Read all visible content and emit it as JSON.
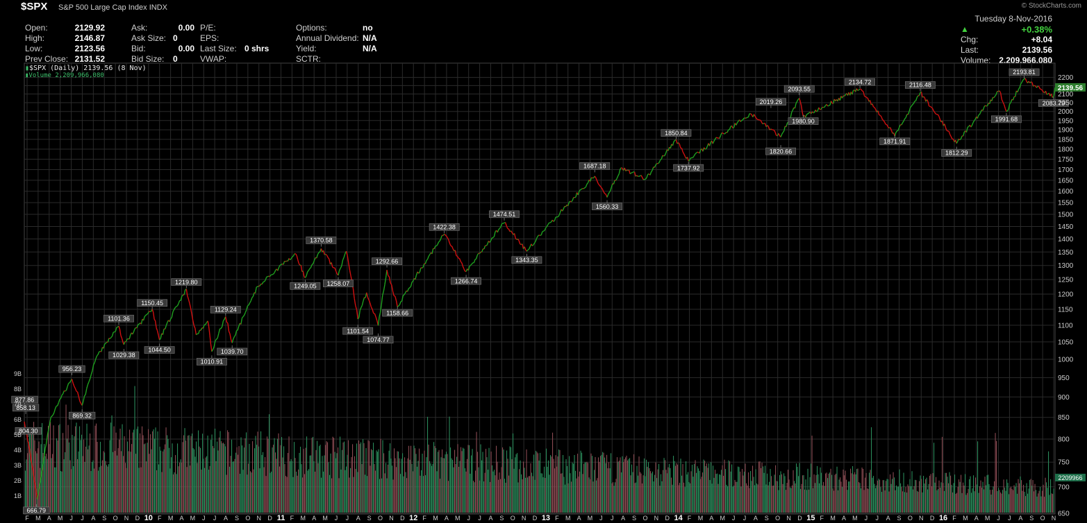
{
  "header": {
    "symbol": "$SPX",
    "name": "S&P 500 Large Cap Index",
    "exchange": "INDX",
    "brand": "© StockCharts.com"
  },
  "quote_left": [
    {
      "label": "Open:",
      "value": "2129.92"
    },
    {
      "label": "High:",
      "value": "2146.87"
    },
    {
      "label": "Low:",
      "value": "2123.56"
    },
    {
      "label": "Prev Close:",
      "value": "2131.52"
    }
  ],
  "quote_mid": [
    {
      "label": "Ask:",
      "value": "0.00"
    },
    {
      "label": "Ask Size:",
      "value": "0"
    },
    {
      "label": "Bid:",
      "value": "0.00"
    },
    {
      "label": "Bid Size:",
      "value": "0"
    }
  ],
  "quote_mid2": [
    {
      "label": "P/E:",
      "value": ""
    },
    {
      "label": "EPS:",
      "value": ""
    },
    {
      "label": "Last Size:",
      "value": "0 shrs"
    },
    {
      "label": "VWAP:",
      "value": ""
    }
  ],
  "quote_mid3": [
    {
      "label": "Options:",
      "value": "no"
    },
    {
      "label": "Annual Dividend:",
      "value": "N/A"
    },
    {
      "label": "Yield:",
      "value": "N/A"
    },
    {
      "label": "SCTR:",
      "value": ""
    }
  ],
  "quote_right": {
    "date": "Tuesday  8-Nov-2016",
    "pct_change": "+0.38%",
    "chg_label": "Chg:",
    "chg": "+8.04",
    "last_label": "Last:",
    "last": "2139.56",
    "volume_label": "Volume:",
    "volume": "2,209,966,080"
  },
  "legend": {
    "price": "$SPX (Daily) 2139.56 (8 Nov)",
    "volume": "Volume 2,209,966,080"
  },
  "colors": {
    "up": "#1fa01f",
    "down": "#d01010",
    "vol_up": "#2a8a5a",
    "vol_down": "#8a4a52",
    "grid": "#2b2b2b",
    "label_box": "#3a3a3a"
  },
  "chart_data": {
    "type": "line",
    "title": "$SPX (Daily) 2139.56 (8 Nov)",
    "y_scale": "log",
    "ylim": [
      650,
      2250
    ],
    "y_ticks": [
      650,
      700,
      750,
      800,
      850,
      900,
      950,
      1000,
      1050,
      1100,
      1150,
      1200,
      1250,
      1300,
      1350,
      1400,
      1450,
      1500,
      1550,
      1600,
      1650,
      1700,
      1750,
      1800,
      1850,
      1900,
      1950,
      2000,
      2050,
      2100,
      2150,
      2200
    ],
    "volume_ticks": [
      "1B",
      "2B",
      "3B",
      "4B",
      "5B",
      "6B",
      "7B",
      "8B",
      "9B"
    ],
    "x_ticks": [
      "F",
      "M",
      "A",
      "M",
      "J",
      "J",
      "A",
      "S",
      "O",
      "N",
      "D",
      "10",
      "F",
      "M",
      "A",
      "M",
      "J",
      "J",
      "A",
      "S",
      "O",
      "N",
      "D",
      "11",
      "F",
      "M",
      "A",
      "M",
      "J",
      "J",
      "A",
      "S",
      "O",
      "N",
      "D",
      "12",
      "F",
      "M",
      "A",
      "M",
      "J",
      "J",
      "A",
      "S",
      "O",
      "N",
      "D",
      "13",
      "F",
      "M",
      "A",
      "M",
      "J",
      "J",
      "A",
      "S",
      "O",
      "N",
      "D",
      "14",
      "F",
      "M",
      "A",
      "M",
      "J",
      "J",
      "A",
      "S",
      "O",
      "N",
      "D",
      "15",
      "F",
      "M",
      "A",
      "M",
      "J",
      "J",
      "A",
      "S",
      "O",
      "N",
      "D",
      "16",
      "F",
      "M",
      "A",
      "M",
      "J",
      "J",
      "A",
      "S",
      "O",
      "N"
    ],
    "x_start": "2009-02",
    "series": [
      {
        "values": [
          [
            "2009-02-01",
            840
          ],
          [
            "2009-03-09",
            676
          ],
          [
            "2009-04-15",
            850
          ],
          [
            "2009-06-12",
            946
          ],
          [
            "2009-07-10",
            879
          ],
          [
            "2009-08-20",
            1010
          ],
          [
            "2009-10-19",
            1097
          ],
          [
            "2009-11-02",
            1042
          ],
          [
            "2010-01-19",
            1150
          ],
          [
            "2010-02-08",
            1056
          ],
          [
            "2010-04-23",
            1217
          ],
          [
            "2010-05-20",
            1071
          ],
          [
            "2010-06-21",
            1113
          ],
          [
            "2010-07-02",
            1022
          ],
          [
            "2010-08-09",
            1127
          ],
          [
            "2010-08-27",
            1047
          ],
          [
            "2010-11-05",
            1225
          ],
          [
            "2011-02-18",
            1343
          ],
          [
            "2011-03-16",
            1256
          ],
          [
            "2011-04-29",
            1363
          ],
          [
            "2011-06-15",
            1265
          ],
          [
            "2011-07-07",
            1353
          ],
          [
            "2011-08-08",
            1119
          ],
          [
            "2011-09-01",
            1205
          ],
          [
            "2011-10-03",
            1099
          ],
          [
            "2011-10-27",
            1284
          ],
          [
            "2011-11-25",
            1158
          ],
          [
            "2012-04-02",
            1419
          ],
          [
            "2012-06-01",
            1278
          ],
          [
            "2012-09-14",
            1465
          ],
          [
            "2012-11-15",
            1353
          ],
          [
            "2013-05-21",
            1669
          ],
          [
            "2013-06-24",
            1573
          ],
          [
            "2013-08-02",
            1709
          ],
          [
            "2013-10-08",
            1655
          ],
          [
            "2013-12-31",
            1848
          ],
          [
            "2014-02-03",
            1741
          ],
          [
            "2014-07-24",
            1988
          ],
          [
            "2014-10-15",
            1862
          ],
          [
            "2014-12-05",
            2075
          ],
          [
            "2014-12-16",
            1972
          ],
          [
            "2015-05-21",
            2130
          ],
          [
            "2015-08-25",
            1867
          ],
          [
            "2015-11-03",
            2109
          ],
          [
            "2016-02-11",
            1829
          ],
          [
            "2016-06-08",
            2119
          ],
          [
            "2016-06-27",
            2000
          ],
          [
            "2016-08-15",
            2190
          ],
          [
            "2016-11-04",
            2085
          ],
          [
            "2016-11-08",
            2139.56
          ]
        ]
      }
    ],
    "annotations": [
      {
        "label": "877.86",
        "x": "2009-02-02",
        "v": 877.86,
        "pos": "above"
      },
      {
        "label": "858.13",
        "x": "2009-02-05",
        "v": 858.13,
        "pos": "above"
      },
      {
        "label": "804.30",
        "x": "2009-02-12",
        "v": 804.3,
        "pos": "above"
      },
      {
        "label": "666.79",
        "x": "2009-03-06",
        "v": 666.79,
        "pos": "below"
      },
      {
        "label": "956.23",
        "x": "2009-06-12",
        "v": 956.23,
        "pos": "above"
      },
      {
        "label": "869.32",
        "x": "2009-07-10",
        "v": 869.32,
        "pos": "below"
      },
      {
        "label": "1101.36",
        "x": "2009-10-19",
        "v": 1101.36,
        "pos": "above"
      },
      {
        "label": "1029.38",
        "x": "2009-11-02",
        "v": 1029.38,
        "pos": "below"
      },
      {
        "label": "1150.45",
        "x": "2010-01-19",
        "v": 1150.45,
        "pos": "above"
      },
      {
        "label": "1044.50",
        "x": "2010-02-08",
        "v": 1044.5,
        "pos": "below"
      },
      {
        "label": "1219.80",
        "x": "2010-04-23",
        "v": 1219.8,
        "pos": "above"
      },
      {
        "label": "1010.91",
        "x": "2010-07-02",
        "v": 1010.91,
        "pos": "below"
      },
      {
        "label": "1129.24",
        "x": "2010-08-09",
        "v": 1129.24,
        "pos": "above"
      },
      {
        "label": "1039.70",
        "x": "2010-08-27",
        "v": 1039.7,
        "pos": "below"
      },
      {
        "label": "1370.58",
        "x": "2011-04-29",
        "v": 1370.58,
        "pos": "above"
      },
      {
        "label": "1249.05",
        "x": "2011-03-16",
        "v": 1249.05,
        "pos": "below"
      },
      {
        "label": "1258.07",
        "x": "2011-06-15",
        "v": 1258.07,
        "pos": "below"
      },
      {
        "label": "1101.54",
        "x": "2011-08-08",
        "v": 1101.54,
        "pos": "below"
      },
      {
        "label": "1292.66",
        "x": "2011-10-27",
        "v": 1292.66,
        "pos": "above"
      },
      {
        "label": "1074.77",
        "x": "2011-10-03",
        "v": 1074.77,
        "pos": "below"
      },
      {
        "label": "1158.66",
        "x": "2011-11-25",
        "v": 1158.66,
        "pos": "below"
      },
      {
        "label": "1422.38",
        "x": "2012-04-02",
        "v": 1422.38,
        "pos": "above"
      },
      {
        "label": "1266.74",
        "x": "2012-06-01",
        "v": 1266.74,
        "pos": "below"
      },
      {
        "label": "1474.51",
        "x": "2012-09-14",
        "v": 1474.51,
        "pos": "above"
      },
      {
        "label": "1343.35",
        "x": "2012-11-15",
        "v": 1343.35,
        "pos": "below"
      },
      {
        "label": "1687.18",
        "x": "2013-05-21",
        "v": 1687.18,
        "pos": "above"
      },
      {
        "label": "1560.33",
        "x": "2013-06-24",
        "v": 1560.33,
        "pos": "below"
      },
      {
        "label": "1850.84",
        "x": "2013-12-31",
        "v": 1850.84,
        "pos": "above"
      },
      {
        "label": "1737.92",
        "x": "2014-02-03",
        "v": 1737.92,
        "pos": "below"
      },
      {
        "label": "2019.26",
        "x": "2014-09-18",
        "v": 2019.26,
        "pos": "above"
      },
      {
        "label": "1820.66",
        "x": "2014-10-15",
        "v": 1820.66,
        "pos": "below"
      },
      {
        "label": "2093.55",
        "x": "2014-12-05",
        "v": 2093.55,
        "pos": "above"
      },
      {
        "label": "1980.90",
        "x": "2014-12-16",
        "v": 1980.9,
        "pos": "below"
      },
      {
        "label": "2134.72",
        "x": "2015-05-21",
        "v": 2134.72,
        "pos": "above"
      },
      {
        "label": "1871.91",
        "x": "2015-08-25",
        "v": 1871.91,
        "pos": "below"
      },
      {
        "label": "2116.48",
        "x": "2015-11-03",
        "v": 2116.48,
        "pos": "above"
      },
      {
        "label": "1812.29",
        "x": "2016-02-11",
        "v": 1812.29,
        "pos": "below"
      },
      {
        "label": "1991.68",
        "x": "2016-06-27",
        "v": 1991.68,
        "pos": "below"
      },
      {
        "label": "2193.81",
        "x": "2016-08-15",
        "v": 2193.81,
        "pos": "above"
      },
      {
        "label": "2083.79",
        "x": "2016-11-04",
        "v": 2083.79,
        "pos": "below"
      }
    ],
    "last_price_label": "2139.56",
    "last_volume_label": "2209966"
  }
}
